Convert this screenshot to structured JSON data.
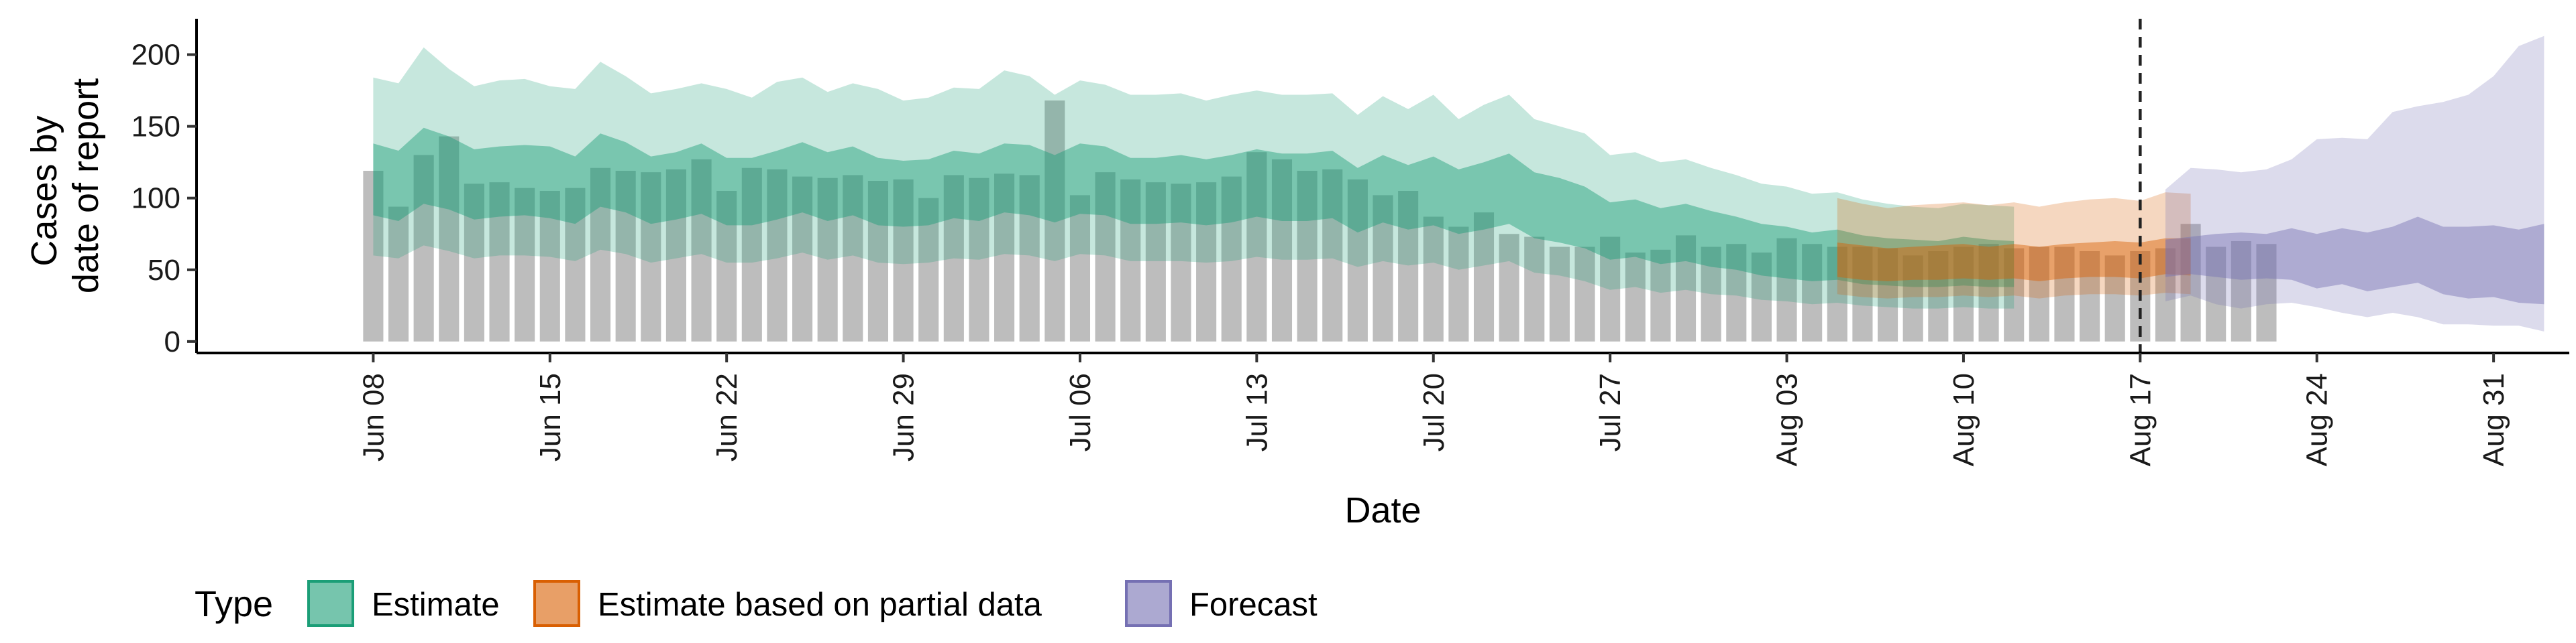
{
  "chart_data": {
    "type": "bar+area",
    "xlabel": "Date",
    "ylabel": [
      "Cases by",
      "date of report"
    ],
    "ylim": [
      -8,
      225
    ],
    "xlim": [
      "2020-06-01",
      "2020-09-03"
    ],
    "y_ticks": [
      0,
      50,
      100,
      150,
      200
    ],
    "x_ticks": [
      {
        "date": "2020-06-08",
        "label": "Jun 08"
      },
      {
        "date": "2020-06-15",
        "label": "Jun 15"
      },
      {
        "date": "2020-06-22",
        "label": "Jun 22"
      },
      {
        "date": "2020-06-29",
        "label": "Jun 29"
      },
      {
        "date": "2020-07-06",
        "label": "Jul 06"
      },
      {
        "date": "2020-07-13",
        "label": "Jul 13"
      },
      {
        "date": "2020-07-20",
        "label": "Jul 20"
      },
      {
        "date": "2020-07-27",
        "label": "Jul 27"
      },
      {
        "date": "2020-08-03",
        "label": "Aug 03"
      },
      {
        "date": "2020-08-10",
        "label": "Aug 10"
      },
      {
        "date": "2020-08-17",
        "label": "Aug 17"
      },
      {
        "date": "2020-08-24",
        "label": "Aug 24"
      },
      {
        "date": "2020-08-31",
        "label": "Aug 31"
      }
    ],
    "bars": {
      "start_date": "2020-06-08",
      "color": "#bdbdbd",
      "values": [
        119,
        94,
        130,
        143,
        110,
        111,
        107,
        105,
        107,
        121,
        119,
        118,
        120,
        127,
        105,
        121,
        120,
        115,
        114,
        116,
        112,
        113,
        100,
        116,
        114,
        117,
        116,
        168,
        102,
        118,
        113,
        111,
        110,
        111,
        115,
        132,
        127,
        119,
        120,
        113,
        102,
        105,
        87,
        80,
        90,
        75,
        73,
        66,
        66,
        73,
        62,
        64,
        74,
        66,
        68,
        62,
        72,
        68,
        66,
        66,
        65,
        60,
        63,
        66,
        68,
        65,
        66,
        66,
        63,
        60,
        63,
        65,
        82,
        66,
        70,
        68
      ]
    },
    "vline_date": "2020-08-17",
    "series": [
      {
        "name": "Estimate",
        "color": "#1b9e77",
        "start_date": "2020-06-08",
        "outer_upper": [
          184,
          180,
          205,
          190,
          178,
          182,
          183,
          178,
          176,
          195,
          185,
          173,
          176,
          180,
          176,
          170,
          181,
          184,
          174,
          180,
          176,
          168,
          170,
          177,
          176,
          189,
          185,
          172,
          182,
          179,
          172,
          172,
          173,
          168,
          172,
          175,
          172,
          172,
          173,
          158,
          171,
          162,
          172,
          155,
          165,
          172,
          155,
          150,
          145,
          130,
          132,
          125,
          127,
          121,
          116,
          110,
          108,
          103,
          104,
          99,
          96,
          94,
          93,
          96,
          95,
          94
        ],
        "inner_upper": [
          138,
          133,
          149,
          143,
          134,
          136,
          137,
          136,
          129,
          145,
          139,
          129,
          132,
          138,
          128,
          128,
          133,
          139,
          132,
          136,
          128,
          126,
          127,
          133,
          131,
          138,
          137,
          130,
          138,
          136,
          128,
          128,
          130,
          127,
          130,
          134,
          131,
          131,
          133,
          121,
          130,
          123,
          129,
          120,
          125,
          131,
          118,
          114,
          108,
          97,
          99,
          93,
          96,
          91,
          87,
          82,
          80,
          76,
          78,
          74,
          72,
          71,
          70,
          73,
          71,
          70
        ],
        "inner_lower": [
          88,
          84,
          96,
          92,
          85,
          87,
          88,
          86,
          82,
          94,
          90,
          82,
          85,
          89,
          81,
          81,
          85,
          90,
          84,
          88,
          81,
          80,
          81,
          86,
          84,
          90,
          88,
          83,
          89,
          88,
          82,
          82,
          83,
          81,
          83,
          87,
          84,
          84,
          86,
          76,
          83,
          78,
          81,
          75,
          78,
          82,
          72,
          69,
          65,
          57,
          59,
          54,
          56,
          52,
          50,
          46,
          44,
          42,
          43,
          40,
          39,
          38,
          38,
          39,
          38,
          38
        ],
        "outer_lower": [
          60,
          58,
          67,
          63,
          58,
          60,
          60,
          59,
          56,
          64,
          61,
          55,
          58,
          61,
          55,
          55,
          58,
          62,
          57,
          60,
          55,
          54,
          55,
          58,
          57,
          61,
          60,
          56,
          61,
          60,
          56,
          56,
          56,
          55,
          56,
          59,
          57,
          57,
          58,
          52,
          56,
          53,
          55,
          50,
          53,
          56,
          48,
          46,
          42,
          36,
          38,
          34,
          36,
          33,
          32,
          29,
          28,
          26,
          27,
          25,
          24,
          23,
          23,
          24,
          23,
          23
        ]
      },
      {
        "name": "Estimate based on partial data",
        "color": "#d95f02",
        "start_date": "2020-08-05",
        "outer_upper": [
          100,
          96,
          93,
          95,
          96,
          97,
          95,
          97,
          94,
          97,
          99,
          100,
          98,
          104,
          103
        ],
        "inner_upper": [
          69,
          67,
          65,
          66,
          67,
          68,
          66,
          68,
          66,
          68,
          69,
          70,
          69,
          72,
          72
        ],
        "inner_lower": [
          45,
          43,
          42,
          43,
          43,
          44,
          43,
          44,
          42,
          44,
          45,
          45,
          44,
          47,
          46
        ],
        "outer_lower": [
          33,
          31,
          30,
          31,
          31,
          32,
          31,
          32,
          30,
          32,
          33,
          33,
          32,
          34,
          33
        ]
      },
      {
        "name": "Forecast",
        "color": "#7570b3",
        "start_date": "2020-08-18",
        "outer_upper": [
          106,
          121,
          120,
          118,
          120,
          127,
          141,
          142,
          141,
          160,
          164,
          167,
          172,
          185,
          206,
          213
        ],
        "inner_upper": [
          71,
          73,
          75,
          76,
          75,
          79,
          75,
          79,
          76,
          80,
          87,
          80,
          80,
          81,
          78,
          82
        ],
        "inner_lower": [
          45,
          47,
          45,
          43,
          44,
          43,
          37,
          40,
          35,
          38,
          41,
          33,
          30,
          31,
          27,
          26
        ],
        "outer_lower": [
          28,
          32,
          26,
          23,
          26,
          27,
          24,
          20,
          17,
          20,
          17,
          12,
          12,
          11,
          11,
          7
        ]
      }
    ],
    "legend": {
      "title": "Type",
      "position": "bottom",
      "entries": [
        "Estimate",
        "Estimate based on partial data",
        "Forecast"
      ]
    },
    "grid": false
  }
}
